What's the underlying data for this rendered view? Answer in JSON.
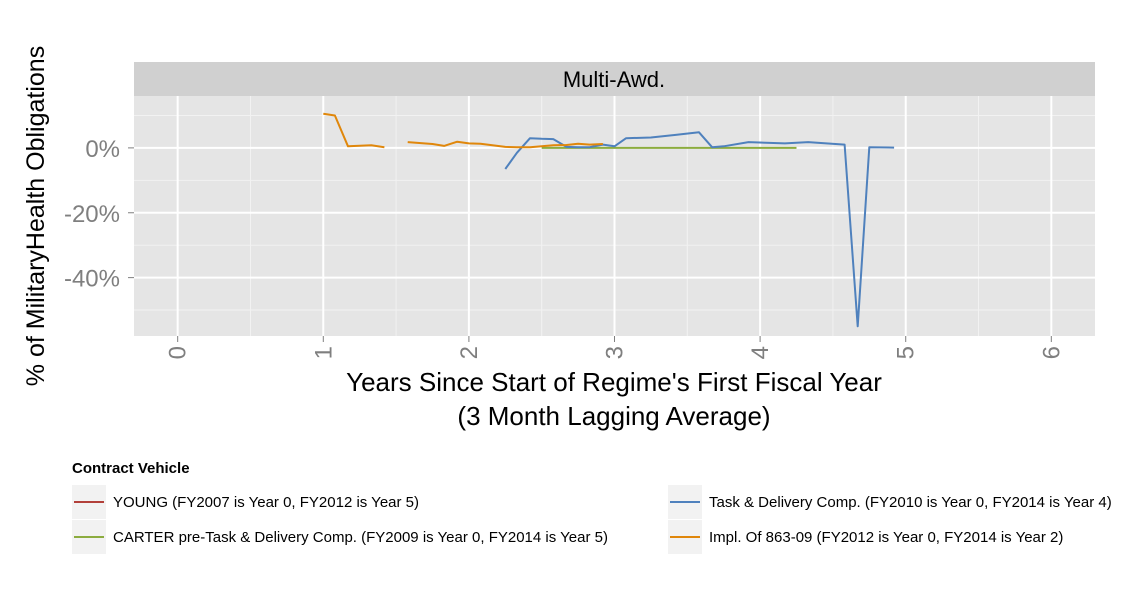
{
  "chart_data": {
    "type": "line",
    "facet_label": "Multi-Awd.",
    "xlabel_line1": "Years Since Start of Regime's First Fiscal Year",
    "xlabel_line2": "(3 Month Lagging Average)",
    "ylabel": "% of MilitaryHealth Obligations",
    "xlim": [
      -0.3,
      6.3
    ],
    "ylim": [
      -58,
      16
    ],
    "x_ticks": [
      0,
      1,
      2,
      3,
      4,
      5,
      6
    ],
    "x_tick_labels": [
      "0",
      "1",
      "2",
      "3",
      "4",
      "5",
      "6"
    ],
    "y_ticks": [
      0,
      -20,
      -40
    ],
    "y_tick_labels": [
      "0%",
      "-20%",
      "-40%"
    ],
    "grid": true,
    "legend_position": "bottom",
    "legend_title": "Contract Vehicle",
    "series": [
      {
        "name": "YOUNG (FY2007 is Year 0, FY2012 is Year 5)",
        "color": "#b2403a",
        "points": []
      },
      {
        "name": "CARTER pre-Task & Delivery Comp. (FY2009 is Year 0, FY2014 is Year 5)",
        "color": "#8cac3f",
        "points": [
          [
            2.5,
            0
          ],
          [
            2.75,
            0
          ],
          [
            3.0,
            0
          ],
          [
            3.25,
            0
          ],
          [
            3.5,
            0
          ],
          [
            3.75,
            0
          ],
          [
            4.0,
            0
          ],
          [
            4.25,
            0
          ]
        ]
      },
      {
        "name": "Task & Delivery Comp. (FY2010 is Year 0, FY2014 is Year 4)",
        "color": "#4f81bd",
        "points": [
          [
            2.25,
            -6.5
          ],
          [
            2.33,
            -1.5
          ],
          [
            2.42,
            3
          ],
          [
            2.5,
            2.8
          ],
          [
            2.58,
            2.7
          ],
          [
            2.67,
            0.3
          ],
          [
            2.75,
            0.2
          ],
          [
            2.83,
            0.2
          ],
          [
            2.92,
            1.0
          ],
          [
            3.0,
            0.5
          ],
          [
            3.08,
            3.0
          ],
          [
            3.25,
            3.2
          ],
          [
            3.42,
            4.0
          ],
          [
            3.58,
            4.8
          ],
          [
            3.67,
            0.2
          ],
          [
            3.75,
            0.5
          ],
          [
            3.92,
            1.8
          ],
          [
            4.17,
            1.4
          ],
          [
            4.33,
            1.8
          ],
          [
            4.58,
            1.0
          ],
          [
            4.67,
            -55
          ],
          [
            4.75,
            0.2
          ],
          [
            4.92,
            0.1
          ]
        ]
      },
      {
        "name": "Impl. Of 863-09 (FY2012 is Year 0, FY2014 is Year 2)",
        "color": "#e0870b",
        "points": [
          [
            1.0,
            10.5
          ],
          [
            1.08,
            10
          ],
          [
            1.17,
            0.5
          ],
          [
            1.33,
            0.8
          ],
          [
            1.42,
            0.2
          ],
          null,
          [
            1.58,
            1.8
          ],
          [
            1.75,
            1.2
          ],
          [
            1.83,
            0.6
          ],
          [
            1.92,
            1.9
          ],
          [
            2.0,
            1.4
          ],
          [
            2.08,
            1.3
          ],
          [
            2.25,
            0.3
          ],
          [
            2.33,
            0.2
          ],
          [
            2.42,
            0.2
          ],
          [
            2.5,
            0.5
          ],
          [
            2.58,
            0.8
          ],
          [
            2.67,
            0.9
          ],
          [
            2.75,
            1.3
          ],
          [
            2.83,
            1.0
          ],
          [
            2.92,
            1.2
          ]
        ]
      }
    ]
  }
}
